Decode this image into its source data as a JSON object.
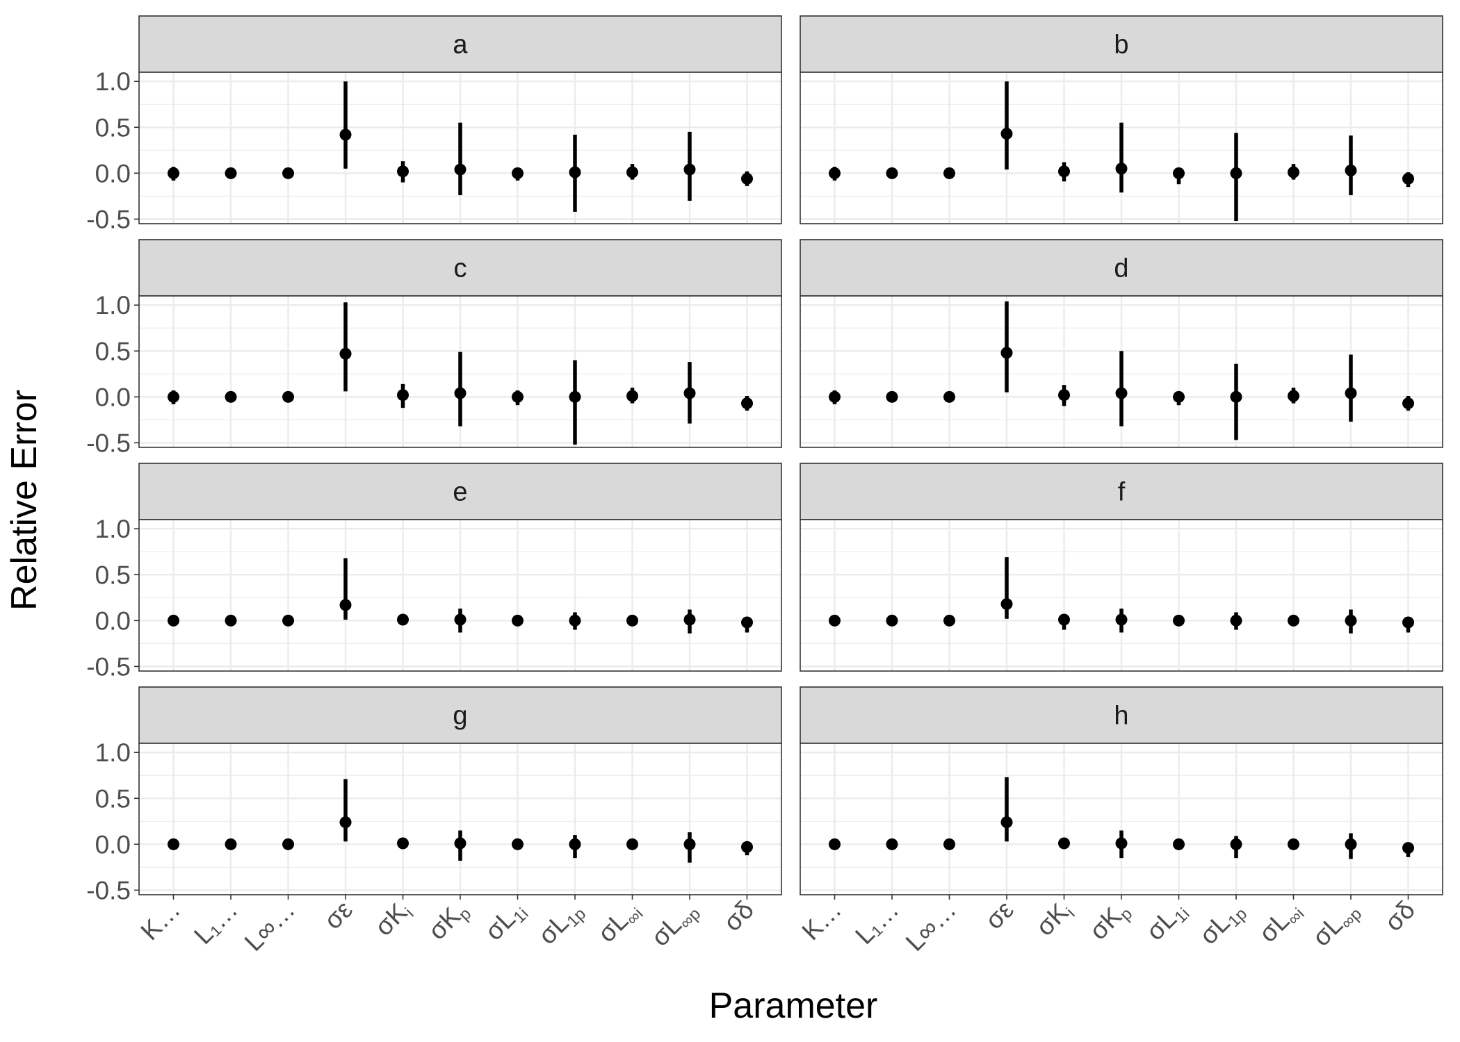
{
  "chart_data": {
    "type": "pointrange",
    "xlabel": "Parameter",
    "ylabel": "Relative Error",
    "ylim": [
      -0.55,
      1.1
    ],
    "yticks": [
      -0.5,
      0.0,
      0.5,
      1.0
    ],
    "ytick_labels": [
      "-0.5",
      "0.0",
      "0.5",
      "1.0"
    ],
    "grid": true,
    "facet_layout": {
      "rows": 4,
      "cols": 2
    },
    "categories": [
      {
        "main": "K…",
        "sub": ""
      },
      {
        "main": "L₁…",
        "sub": ""
      },
      {
        "main": "L∞…",
        "sub": ""
      },
      {
        "main": "σε",
        "sub": ""
      },
      {
        "main": "σK",
        "sub": "i"
      },
      {
        "main": "σK",
        "sub": "p"
      },
      {
        "main": "σL",
        "sub": "1i"
      },
      {
        "main": "σL",
        "sub": "1p"
      },
      {
        "main": "σL",
        "sub": "∞i"
      },
      {
        "main": "σL",
        "sub": "∞p"
      },
      {
        "main": "σδ",
        "sub": ""
      }
    ],
    "panels": [
      {
        "label": "a",
        "mid": [
          0.0,
          0.0,
          0.0,
          0.42,
          0.02,
          0.04,
          0.0,
          0.01,
          0.01,
          0.04,
          -0.06
        ],
        "lower": [
          -0.08,
          -0.02,
          -0.02,
          0.05,
          -0.1,
          -0.24,
          -0.08,
          -0.42,
          -0.07,
          -0.3,
          -0.14
        ],
        "upper": [
          0.07,
          0.02,
          0.02,
          1.0,
          0.13,
          0.55,
          0.06,
          0.42,
          0.1,
          0.45,
          0.02
        ]
      },
      {
        "label": "b",
        "mid": [
          0.0,
          0.0,
          0.0,
          0.43,
          0.02,
          0.05,
          0.0,
          0.0,
          0.01,
          0.03,
          -0.06
        ],
        "lower": [
          -0.08,
          -0.02,
          -0.02,
          0.04,
          -0.09,
          -0.21,
          -0.12,
          -0.52,
          -0.07,
          -0.24,
          -0.15
        ],
        "upper": [
          0.07,
          0.02,
          0.02,
          1.0,
          0.12,
          0.55,
          0.06,
          0.44,
          0.1,
          0.41,
          0.01
        ]
      },
      {
        "label": "c",
        "mid": [
          0.0,
          0.0,
          0.0,
          0.47,
          0.02,
          0.04,
          0.0,
          0.0,
          0.01,
          0.04,
          -0.07
        ],
        "lower": [
          -0.08,
          -0.02,
          -0.02,
          0.06,
          -0.12,
          -0.32,
          -0.09,
          -0.52,
          -0.07,
          -0.29,
          -0.15
        ],
        "upper": [
          0.07,
          0.02,
          0.02,
          1.03,
          0.14,
          0.49,
          0.07,
          0.4,
          0.1,
          0.38,
          0.01
        ]
      },
      {
        "label": "d",
        "mid": [
          0.0,
          0.0,
          0.0,
          0.48,
          0.02,
          0.04,
          0.0,
          0.0,
          0.01,
          0.04,
          -0.07
        ],
        "lower": [
          -0.08,
          -0.02,
          -0.02,
          0.05,
          -0.1,
          -0.32,
          -0.09,
          -0.47,
          -0.07,
          -0.27,
          -0.15
        ],
        "upper": [
          0.07,
          0.02,
          0.02,
          1.04,
          0.13,
          0.5,
          0.06,
          0.36,
          0.1,
          0.46,
          0.01
        ]
      },
      {
        "label": "e",
        "mid": [
          0.0,
          0.0,
          0.0,
          0.17,
          0.01,
          0.01,
          0.0,
          0.0,
          0.0,
          0.01,
          -0.02
        ],
        "lower": [
          -0.03,
          -0.02,
          -0.02,
          0.01,
          -0.02,
          -0.13,
          -0.03,
          -0.1,
          -0.02,
          -0.14,
          -0.13
        ],
        "upper": [
          0.03,
          0.02,
          0.02,
          0.68,
          0.03,
          0.13,
          0.03,
          0.09,
          0.02,
          0.12,
          0.01
        ]
      },
      {
        "label": "f",
        "mid": [
          0.0,
          0.0,
          0.0,
          0.18,
          0.01,
          0.01,
          0.0,
          0.0,
          0.0,
          0.0,
          -0.02
        ],
        "lower": [
          -0.03,
          -0.02,
          -0.02,
          0.02,
          -0.1,
          -0.13,
          -0.03,
          -0.1,
          -0.02,
          -0.14,
          -0.13
        ],
        "upper": [
          0.03,
          0.02,
          0.02,
          0.69,
          0.03,
          0.13,
          0.03,
          0.09,
          0.02,
          0.12,
          0.01
        ]
      },
      {
        "label": "g",
        "mid": [
          0.0,
          0.0,
          0.0,
          0.24,
          0.01,
          0.01,
          0.0,
          0.0,
          0.0,
          0.0,
          -0.03
        ],
        "lower": [
          -0.03,
          -0.02,
          -0.02,
          0.03,
          -0.02,
          -0.18,
          -0.03,
          -0.15,
          -0.02,
          -0.2,
          -0.12
        ],
        "upper": [
          0.03,
          0.02,
          0.02,
          0.71,
          0.03,
          0.15,
          0.03,
          0.1,
          0.02,
          0.13,
          0.01
        ]
      },
      {
        "label": "h",
        "mid": [
          0.0,
          0.0,
          0.0,
          0.24,
          0.01,
          0.01,
          0.0,
          0.0,
          0.0,
          0.0,
          -0.04
        ],
        "lower": [
          -0.03,
          -0.02,
          -0.02,
          0.03,
          -0.02,
          -0.15,
          -0.03,
          -0.15,
          -0.02,
          -0.16,
          -0.14
        ],
        "upper": [
          0.03,
          0.02,
          0.02,
          0.73,
          0.03,
          0.15,
          0.03,
          0.09,
          0.02,
          0.12,
          0.01
        ]
      }
    ]
  }
}
